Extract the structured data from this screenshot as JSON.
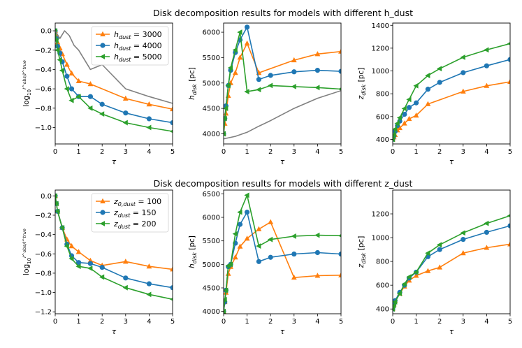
{
  "figure": {
    "row_titles": [
      "Disk decomposition results for models with different h_dust",
      "Disk decomposition results for models with different z_dust"
    ]
  },
  "colors": {
    "orange": "#ff7f0e",
    "blue": "#1f77b4",
    "green": "#2ca02c",
    "gray": "#808080"
  },
  "chart_data": [
    {
      "type": "line",
      "row": 0,
      "col": 0,
      "xlabel": "τ",
      "ylabel": "log_10 I^obs/I^true",
      "xlim": [
        0,
        5
      ],
      "ylim": [
        -1.17,
        0.08
      ],
      "xticks": [
        0,
        1,
        2,
        3,
        4,
        5
      ],
      "yticks": [
        0.0,
        -0.2,
        -0.4,
        -0.6,
        -0.8,
        -1.0
      ],
      "legend": {
        "position": "top-right",
        "entries": [
          "h_dust = 3000",
          "h_dust = 4000",
          "h_dust = 5000"
        ]
      },
      "series": [
        {
          "name": "h_dust = 3000",
          "color": "orange",
          "marker": "^",
          "x": [
            0,
            0.05,
            0.1,
            0.2,
            0.3,
            0.5,
            0.7,
            1,
            1.5,
            3,
            4,
            5
          ],
          "y": [
            0,
            -0.05,
            -0.12,
            -0.18,
            -0.24,
            -0.35,
            -0.44,
            -0.52,
            -0.55,
            -0.7,
            -0.76,
            -0.81
          ]
        },
        {
          "name": "h_dust = 4000",
          "color": "blue",
          "marker": "o",
          "x": [
            0,
            0.05,
            0.1,
            0.2,
            0.3,
            0.5,
            0.7,
            1,
            1.5,
            2,
            3,
            4,
            5
          ],
          "y": [
            0,
            -0.08,
            -0.16,
            -0.23,
            -0.32,
            -0.47,
            -0.6,
            -0.68,
            -0.68,
            -0.76,
            -0.85,
            -0.91,
            -0.95
          ]
        },
        {
          "name": "h_dust = 5000",
          "color": "green",
          "marker": "<",
          "x": [
            0,
            0.05,
            0.1,
            0.2,
            0.3,
            0.5,
            0.7,
            1,
            1.5,
            2,
            3,
            4,
            5
          ],
          "y": [
            0,
            -0.1,
            -0.2,
            -0.3,
            -0.41,
            -0.6,
            -0.72,
            -0.68,
            -0.8,
            -0.86,
            -0.95,
            -1.0,
            -1.04
          ]
        },
        {
          "name": "reference",
          "color": "gray",
          "marker": "",
          "x": [
            0,
            0.2,
            0.4,
            0.6,
            0.8,
            1,
            1.5,
            2,
            3,
            4,
            5
          ],
          "y": [
            0,
            -0.08,
            0,
            -0.05,
            -0.15,
            -0.2,
            -0.4,
            -0.35,
            -0.6,
            -0.68,
            -0.75
          ]
        }
      ]
    },
    {
      "type": "line",
      "row": 0,
      "col": 1,
      "xlabel": "τ",
      "ylabel": "h_disk [pc]",
      "xlim": [
        0,
        5
      ],
      "ylim": [
        3800,
        6180
      ],
      "xticks": [
        0,
        1,
        2,
        3,
        4,
        5
      ],
      "yticks": [
        4000,
        4500,
        5000,
        5500,
        6000
      ],
      "series": [
        {
          "name": "h_dust = 3000",
          "color": "orange",
          "marker": "^",
          "x": [
            0,
            0.05,
            0.1,
            0.2,
            0.3,
            0.5,
            0.7,
            1,
            1.5,
            3,
            4,
            5
          ],
          "y": [
            4000,
            4200,
            4400,
            4750,
            5000,
            5200,
            5500,
            5780,
            5200,
            5450,
            5570,
            5620
          ]
        },
        {
          "name": "h_dust = 4000",
          "color": "blue",
          "marker": "o",
          "x": [
            0,
            0.05,
            0.1,
            0.2,
            0.3,
            0.5,
            0.7,
            1,
            1.5,
            2,
            3,
            4,
            5
          ],
          "y": [
            4000,
            4300,
            4550,
            4950,
            5250,
            5600,
            5850,
            6100,
            5070,
            5150,
            5220,
            5250,
            5230
          ]
        },
        {
          "name": "h_dust = 5000",
          "color": "green",
          "marker": "<",
          "x": [
            0,
            0.05,
            0.1,
            0.2,
            0.3,
            0.5,
            0.7,
            1,
            1.5,
            2,
            3,
            4,
            5
          ],
          "y": [
            4000,
            4300,
            4500,
            4950,
            5300,
            5650,
            6000,
            4830,
            4870,
            4950,
            4930,
            4910,
            4880
          ]
        },
        {
          "name": "reference",
          "color": "gray",
          "marker": "",
          "x": [
            0,
            0.5,
            1,
            1.5,
            2,
            3,
            4,
            5
          ],
          "y": [
            3900,
            3950,
            4030,
            4150,
            4260,
            4500,
            4700,
            4850
          ]
        }
      ]
    },
    {
      "type": "line",
      "row": 0,
      "col": 2,
      "xlabel": "τ",
      "ylabel": "z_disk [pc]",
      "xlim": [
        0,
        5
      ],
      "ylim": [
        360,
        1420
      ],
      "xticks": [
        0,
        1,
        2,
        3,
        4,
        5
      ],
      "yticks": [
        400,
        600,
        800,
        1000,
        1200,
        1400
      ],
      "series": [
        {
          "name": "h_dust = 3000",
          "color": "orange",
          "marker": "^",
          "x": [
            0,
            0.05,
            0.1,
            0.2,
            0.3,
            0.5,
            0.7,
            1,
            1.5,
            3,
            4,
            5
          ],
          "y": [
            400,
            420,
            440,
            480,
            500,
            540,
            580,
            610,
            710,
            820,
            870,
            905
          ]
        },
        {
          "name": "h_dust = 4000",
          "color": "blue",
          "marker": "o",
          "x": [
            0,
            0.05,
            0.1,
            0.2,
            0.3,
            0.5,
            0.7,
            1,
            1.5,
            2,
            3,
            4,
            5
          ],
          "y": [
            400,
            430,
            470,
            520,
            560,
            620,
            680,
            720,
            840,
            900,
            985,
            1045,
            1100
          ]
        },
        {
          "name": "h_dust = 5000",
          "color": "green",
          "marker": "<",
          "x": [
            0,
            0.05,
            0.1,
            0.2,
            0.3,
            0.5,
            0.7,
            1,
            1.5,
            2,
            3,
            4,
            5
          ],
          "y": [
            400,
            440,
            490,
            540,
            590,
            670,
            750,
            870,
            960,
            1020,
            1120,
            1185,
            1240
          ]
        }
      ]
    },
    {
      "type": "line",
      "row": 1,
      "col": 0,
      "xlabel": "τ",
      "ylabel": "log_10 I^obs/I^true",
      "xlim": [
        0,
        5
      ],
      "ylim": [
        -1.22,
        0.06
      ],
      "xticks": [
        0,
        1,
        2,
        3,
        4,
        5
      ],
      "yticks": [
        0.0,
        -0.2,
        -0.4,
        -0.6,
        -0.8,
        -1.0,
        -1.2
      ],
      "legend": {
        "position": "top-right",
        "entries": [
          "z_0,dust = 100",
          "z_dust = 150",
          "z_dust = 200"
        ]
      },
      "series": [
        {
          "name": "z_0,dust = 100",
          "color": "orange",
          "marker": "^",
          "x": [
            0,
            0.05,
            0.1,
            0.3,
            0.5,
            0.7,
            1,
            1.5,
            2,
            3,
            4,
            5
          ],
          "y": [
            0,
            -0.08,
            -0.16,
            -0.33,
            -0.45,
            -0.52,
            -0.58,
            -0.67,
            -0.72,
            -0.68,
            -0.73,
            -0.76
          ]
        },
        {
          "name": "z_dust = 150",
          "color": "blue",
          "marker": "o",
          "x": [
            0,
            0.05,
            0.1,
            0.3,
            0.5,
            0.7,
            1,
            1.5,
            2,
            3,
            4,
            5
          ],
          "y": [
            0,
            -0.08,
            -0.16,
            -0.33,
            -0.5,
            -0.62,
            -0.69,
            -0.7,
            -0.74,
            -0.85,
            -0.91,
            -0.95
          ]
        },
        {
          "name": "z_dust = 200",
          "color": "green",
          "marker": "<",
          "x": [
            0,
            0.05,
            0.1,
            0.3,
            0.5,
            0.7,
            1,
            1.5,
            2,
            3,
            4,
            5
          ],
          "y": [
            0,
            -0.08,
            -0.16,
            -0.33,
            -0.52,
            -0.65,
            -0.73,
            -0.75,
            -0.84,
            -0.95,
            -1.02,
            -1.07
          ]
        }
      ]
    },
    {
      "type": "line",
      "row": 1,
      "col": 1,
      "xlabel": "τ",
      "ylabel": "h_disk [pc]",
      "xlim": [
        0,
        5
      ],
      "ylim": [
        3950,
        6580
      ],
      "xticks": [
        0,
        1,
        2,
        3,
        4,
        5
      ],
      "yticks": [
        4000,
        4500,
        5000,
        5500,
        6000,
        6500
      ],
      "series": [
        {
          "name": "z_0,dust = 100",
          "color": "orange",
          "marker": "^",
          "x": [
            0,
            0.05,
            0.1,
            0.2,
            0.3,
            0.5,
            0.7,
            1,
            1.5,
            2,
            3,
            4,
            5
          ],
          "y": [
            4000,
            4200,
            4400,
            4800,
            4950,
            5150,
            5380,
            5550,
            5750,
            5900,
            4720,
            4760,
            4770
          ]
        },
        {
          "name": "z_dust = 150",
          "color": "blue",
          "marker": "o",
          "x": [
            0,
            0.05,
            0.1,
            0.2,
            0.3,
            0.5,
            0.7,
            1,
            1.5,
            2,
            3,
            4,
            5
          ],
          "y": [
            4000,
            4200,
            4450,
            4950,
            5000,
            5450,
            5850,
            6110,
            5060,
            5150,
            5220,
            5250,
            5220
          ]
        },
        {
          "name": "z_dust = 200",
          "color": "green",
          "marker": "<",
          "x": [
            0,
            0.05,
            0.1,
            0.2,
            0.3,
            0.5,
            0.7,
            1,
            1.5,
            2,
            3,
            4,
            5
          ],
          "y": [
            4000,
            4250,
            4450,
            4970,
            5000,
            5650,
            6110,
            6470,
            5390,
            5530,
            5600,
            5620,
            5610
          ]
        }
      ]
    },
    {
      "type": "line",
      "row": 1,
      "col": 2,
      "xlabel": "τ",
      "ylabel": "z_disk [pc]",
      "xlim": [
        0,
        5
      ],
      "ylim": [
        360,
        1400
      ],
      "xticks": [
        0,
        1,
        2,
        3,
        4,
        5
      ],
      "yticks": [
        400,
        600,
        800,
        1000,
        1200
      ],
      "series": [
        {
          "name": "z_0,dust = 100",
          "color": "orange",
          "marker": "^",
          "x": [
            0,
            0.05,
            0.1,
            0.3,
            0.5,
            0.7,
            1,
            1.5,
            2,
            3,
            4,
            5
          ],
          "y": [
            400,
            440,
            470,
            530,
            590,
            640,
            680,
            720,
            750,
            870,
            915,
            945
          ]
        },
        {
          "name": "z_dust = 150",
          "color": "blue",
          "marker": "o",
          "x": [
            0,
            0.05,
            0.1,
            0.3,
            0.5,
            0.7,
            1,
            1.5,
            2,
            3,
            4,
            5
          ],
          "y": [
            400,
            440,
            470,
            540,
            600,
            660,
            710,
            840,
            900,
            985,
            1045,
            1100
          ]
        },
        {
          "name": "z_dust = 200",
          "color": "green",
          "marker": "<",
          "x": [
            0,
            0.05,
            0.1,
            0.3,
            0.5,
            0.7,
            1,
            1.5,
            2,
            3,
            4,
            5
          ],
          "y": [
            400,
            430,
            460,
            530,
            610,
            670,
            710,
            870,
            940,
            1040,
            1120,
            1185
          ]
        }
      ]
    }
  ]
}
